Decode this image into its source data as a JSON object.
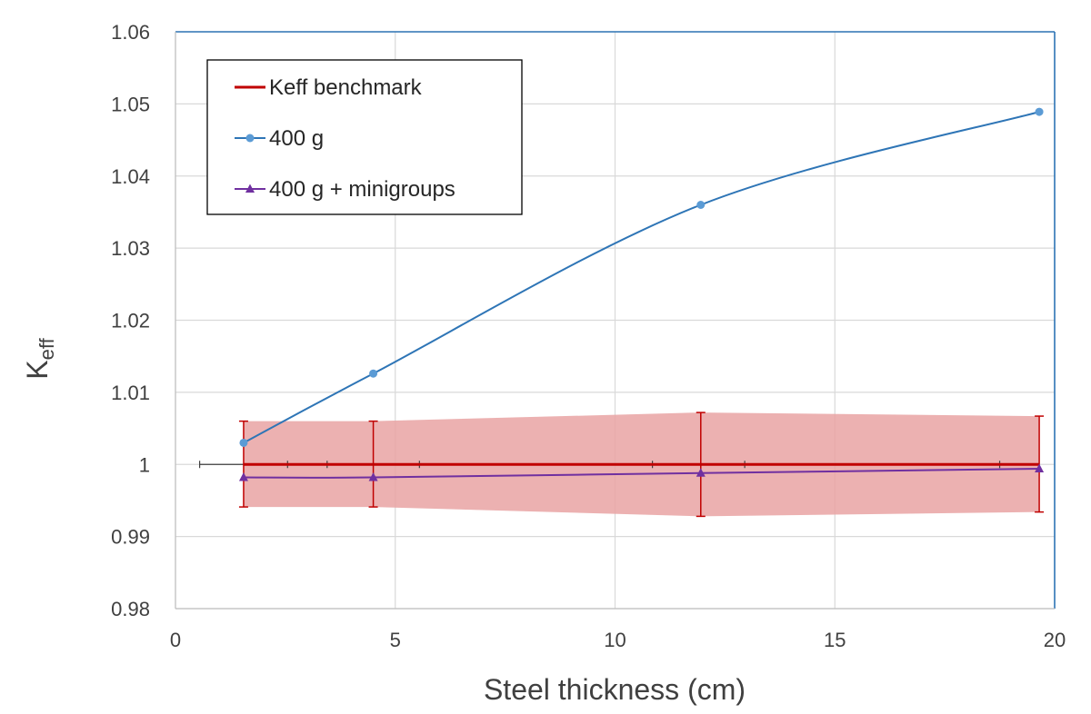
{
  "chart_data": {
    "type": "line",
    "xlabel": "Steel thickness (cm)",
    "ylabel": {
      "main": "K",
      "sub": "eff"
    },
    "xlim": [
      0,
      20
    ],
    "ylim": [
      0.98,
      1.06
    ],
    "xticks": [
      "0",
      "5",
      "10",
      "15",
      "20"
    ],
    "yticks": [
      "0.98",
      "0.99",
      "1",
      "1.01",
      "1.02",
      "1.03",
      "1.04",
      "1.05",
      "1.06"
    ],
    "grid": true,
    "legend": {
      "placement": "top-left"
    },
    "colors": {
      "benchmark": "#c00000",
      "band": "#e9a3a3",
      "series400g": "#2e75b6",
      "series400gMarker": "#5b9bd5",
      "minigroups": "#7030a0",
      "frame": "#2e75b6"
    },
    "x": [
      1.55,
      4.5,
      11.95,
      19.65
    ],
    "benchmark_band": {
      "lower": [
        0.9941,
        0.9941,
        0.9928,
        0.9934
      ],
      "upper": [
        1.006,
        1.006,
        1.0072,
        1.0067
      ]
    },
    "series": [
      {
        "name": "Keff benchmark",
        "x": [
          1.55,
          19.65
        ],
        "values": [
          1.0,
          1.0
        ]
      },
      {
        "name": "400 g",
        "values": [
          1.003,
          1.0126,
          1.036,
          1.0489
        ]
      },
      {
        "name": "400 g + minigroups",
        "values": [
          0.9982,
          0.9982,
          0.9988,
          0.9994
        ]
      }
    ],
    "reference_line": {
      "y": 1.0,
      "x_range": [
        0.55,
        19.65
      ],
      "tick_marks": [
        0.55,
        2.55,
        3.45,
        5.55,
        10.85,
        12.95,
        18.75
      ]
    }
  }
}
